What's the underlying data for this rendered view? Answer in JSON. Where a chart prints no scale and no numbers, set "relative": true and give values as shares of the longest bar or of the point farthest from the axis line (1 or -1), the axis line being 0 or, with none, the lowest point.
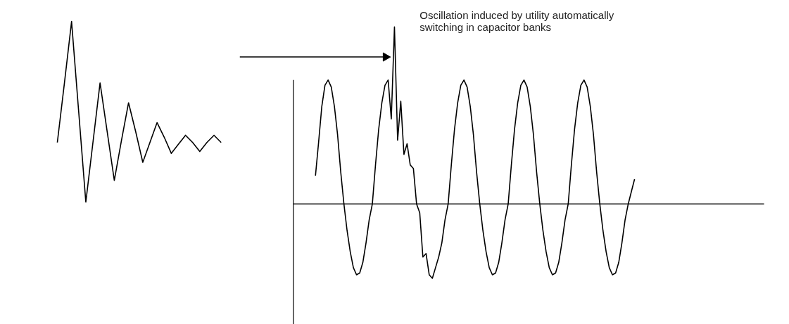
{
  "chart_data": [
    {
      "type": "line",
      "relative": true,
      "categories": [
        null,
        null,
        null,
        null,
        null,
        null,
        null,
        null,
        null,
        null,
        null,
        null,
        null,
        null,
        null,
        null,
        null,
        null,
        null,
        null,
        null,
        null,
        null,
        null
      ],
      "series": [
        {
          "color": "#000000",
          "values": [
            0.33,
            0.66,
            1.0,
            0.5,
            0,
            0.33,
            0.66,
            0.39,
            0.12,
            0.34,
            0.55,
            0.39,
            0.22,
            0.33,
            0.44,
            0.36,
            0.27,
            0.32,
            0.37,
            0.33,
            0.28,
            0.33,
            0.37,
            0.33
          ]
        }
      ]
    },
    {
      "type": "line",
      "relative": true,
      "annotations": [
        "Oscillation induced by utility automatically switching in capacitor banks"
      ],
      "categories": [
        null,
        null,
        null,
        null,
        null,
        null,
        null,
        null,
        null,
        null,
        null,
        null,
        null,
        null,
        null,
        null,
        null,
        null,
        null,
        null,
        null,
        null,
        null,
        null,
        null,
        null,
        null,
        null,
        null,
        null,
        null,
        null,
        null,
        null,
        null,
        null,
        null,
        null,
        null,
        null,
        null,
        null,
        null,
        null,
        null,
        null,
        null,
        null,
        null,
        null,
        null,
        null,
        null,
        null,
        null,
        null,
        null,
        null,
        null,
        null,
        null,
        null,
        null,
        null,
        null,
        null,
        null,
        null,
        null,
        null,
        null,
        null,
        null,
        null,
        null,
        null,
        null,
        null,
        null,
        null,
        null,
        null,
        null,
        null,
        null,
        null,
        null,
        null,
        null,
        null,
        null,
        null,
        null,
        null,
        null,
        null,
        null,
        null,
        null,
        null,
        null,
        null
      ],
      "series": [
        {
          "color": "#000000",
          "values": [
            0.16,
            0.35,
            0.55,
            0.67,
            0.7,
            0.66,
            0.55,
            0.39,
            0.18,
            0,
            -0.15,
            -0.27,
            -0.36,
            -0.4,
            -0.39,
            -0.33,
            -0.22,
            -0.09,
            0,
            0.22,
            0.42,
            0.57,
            0.67,
            0.7,
            0.48,
            1.0,
            0.36,
            0.58,
            0.28,
            0.34,
            0.22,
            0.2,
            0,
            -0.05,
            -0.3,
            -0.28,
            -0.4,
            -0.42,
            -0.36,
            -0.3,
            -0.22,
            -0.09,
            0,
            0.22,
            0.42,
            0.57,
            0.67,
            0.7,
            0.66,
            0.55,
            0.39,
            0.18,
            0,
            -0.15,
            -0.27,
            -0.36,
            -0.4,
            -0.39,
            -0.33,
            -0.22,
            -0.09,
            0,
            0.22,
            0.42,
            0.57,
            0.67,
            0.7,
            0.66,
            0.55,
            0.39,
            0.18,
            0,
            -0.15,
            -0.27,
            -0.36,
            -0.4,
            -0.39,
            -0.33,
            -0.22,
            -0.09,
            0,
            0.22,
            0.42,
            0.57,
            0.67,
            0.7,
            0.66,
            0.55,
            0.39,
            0.18,
            0,
            -0.15,
            -0.27,
            -0.36,
            -0.4,
            -0.39,
            -0.33,
            -0.22,
            -0.09,
            0,
            0.07,
            0.14
          ]
        }
      ]
    }
  ]
}
